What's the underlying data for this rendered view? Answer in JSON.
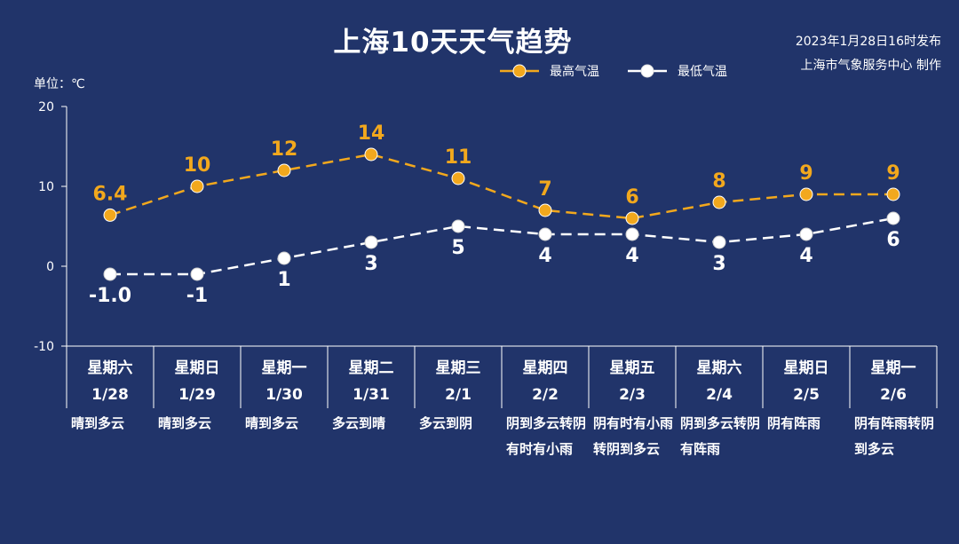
{
  "title": "上海10天天气趋势",
  "issued_line1": "2023年1月28日16时发布",
  "issued_line2": "上海市气象服务中心 制作",
  "unit_label": "单位：℃",
  "colors": {
    "background": "#21346a",
    "high": "#f2a81d",
    "low": "#ffffff",
    "axis": "#ffffff"
  },
  "chart_data": {
    "type": "line",
    "ylim": [
      -10,
      20
    ],
    "yticks": [
      "20",
      "10",
      "0",
      "-10"
    ],
    "legend_position": "top",
    "categories": [
      "星期六 1/28",
      "星期日 1/29",
      "星期一 1/30",
      "星期二 1/31",
      "星期三 2/1",
      "星期四 2/2",
      "星期五 2/3",
      "星期六 2/4",
      "星期日 2/5",
      "星期一 2/6"
    ],
    "days": [
      {
        "weekday": "星期六",
        "date": "1/28",
        "weather": "晴到多云"
      },
      {
        "weekday": "星期日",
        "date": "1/29",
        "weather": "晴到多云"
      },
      {
        "weekday": "星期一",
        "date": "1/30",
        "weather": "晴到多云"
      },
      {
        "weekday": "星期二",
        "date": "1/31",
        "weather": "多云到晴"
      },
      {
        "weekday": "星期三",
        "date": "2/1",
        "weather": "多云到阴"
      },
      {
        "weekday": "星期四",
        "date": "2/2",
        "weather": "阴到多云转阴有时有小雨"
      },
      {
        "weekday": "星期五",
        "date": "2/3",
        "weather": "阴有时有小雨转阴到多云"
      },
      {
        "weekday": "星期六",
        "date": "2/4",
        "weather": "阴到多云转阴有阵雨"
      },
      {
        "weekday": "星期日",
        "date": "2/5",
        "weather": "阴有阵雨"
      },
      {
        "weekday": "星期一",
        "date": "2/6",
        "weather": "阴有阵雨转阴到多云"
      }
    ],
    "series": [
      {
        "name": "最高气温",
        "values": [
          6.4,
          10,
          12,
          14,
          11,
          7,
          6,
          8,
          9,
          9
        ],
        "labels": [
          "6.4",
          "10",
          "12",
          "14",
          "11",
          "7",
          "6",
          "8",
          "9",
          "9"
        ]
      },
      {
        "name": "最低气温",
        "values": [
          -1.0,
          -1,
          1,
          3,
          5,
          4,
          4,
          3,
          4,
          6
        ],
        "labels": [
          "-1.0",
          "-1",
          "1",
          "3",
          "5",
          "4",
          "4",
          "3",
          "4",
          "6"
        ]
      }
    ]
  }
}
